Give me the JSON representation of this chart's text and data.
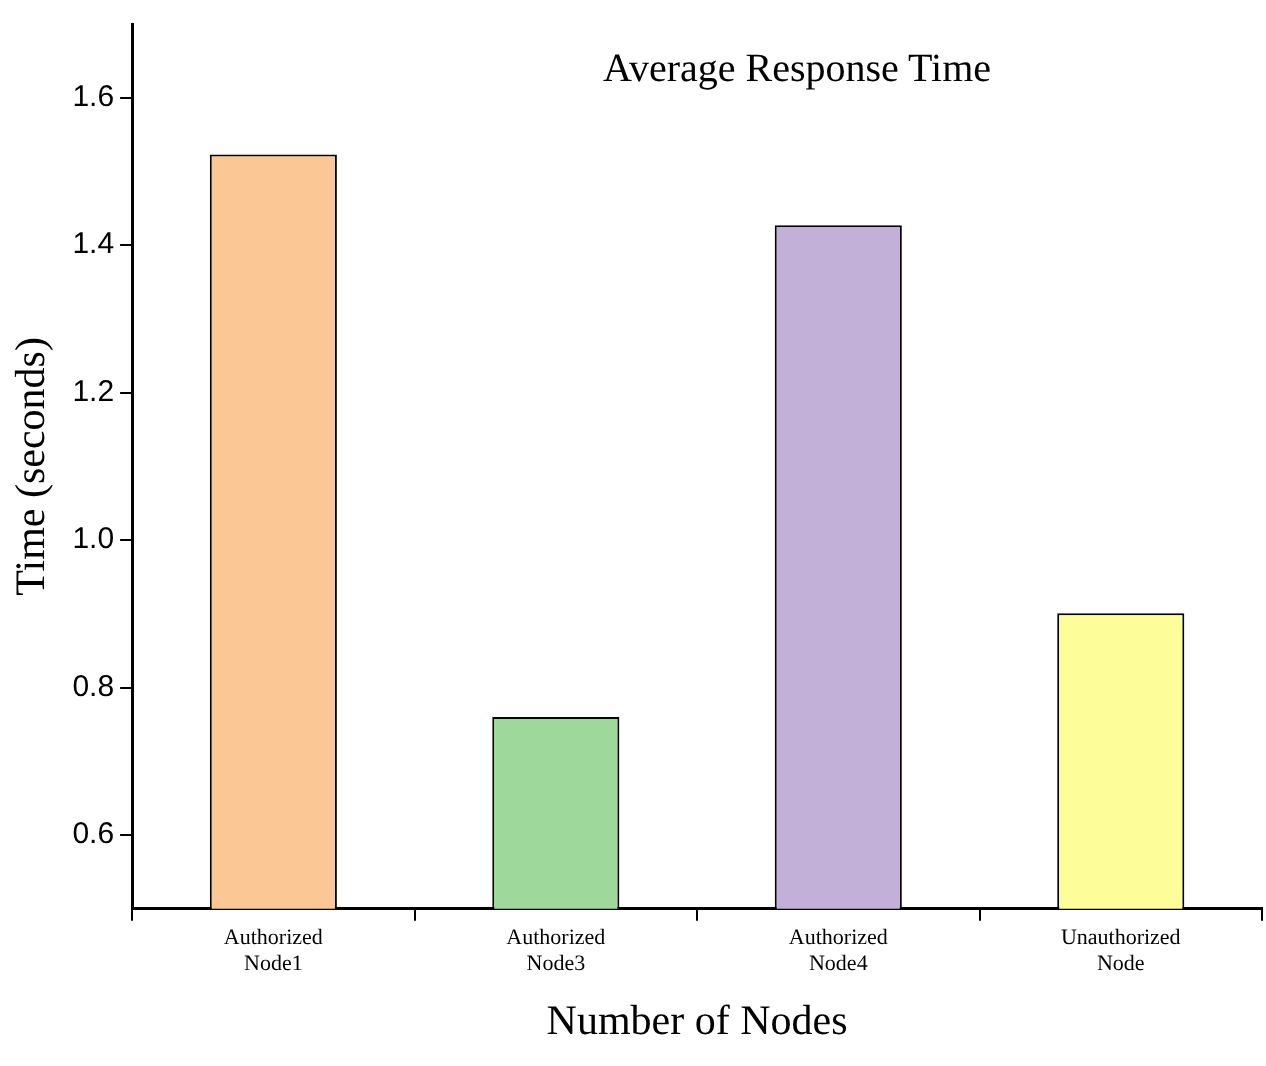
{
  "chart_data": {
    "type": "bar",
    "title": "Average Response Time",
    "xlabel": "Number of Nodes",
    "ylabel": "Time (seconds)",
    "categories": [
      "Authorized Node1",
      "Authorized Node3",
      "Authorized Node4",
      "Unauthorized Node"
    ],
    "values": [
      1.523,
      0.76,
      1.427,
      0.901
    ],
    "colors": [
      "#fbc794",
      "#9ed89a",
      "#c2b0d8",
      "#fdfd9a"
    ],
    "ylim": [
      0.5,
      1.7
    ],
    "yticks": [
      0.6,
      0.8,
      {
        "value": 1,
        "label": "1.0"
      },
      1.2,
      1.4,
      1.6
    ],
    "grid": false,
    "legend": false
  }
}
